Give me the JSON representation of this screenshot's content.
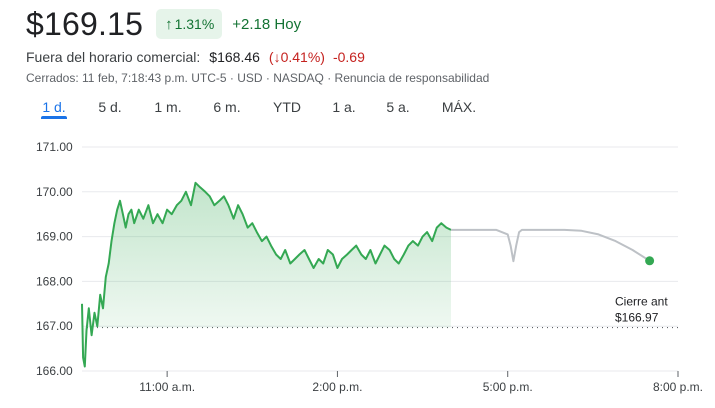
{
  "quote": {
    "price": "$169.15",
    "change_pct": "1.31%",
    "change_abs": "+2.18 Hoy",
    "up_arrow": "↑"
  },
  "after_hours": {
    "label": "Fuera del horario comercial:",
    "price": "$168.46",
    "pct_text": "0.41%",
    "down_arrow": "↓",
    "abs": "-0.69"
  },
  "meta": "Cerrados: 11 feb, 7:18:43 p.m. UTC-5 · USD · NASDAQ · Renuncia de responsabilidad",
  "tabs": [
    "1 d.",
    "5 d.",
    "1 m.",
    "6 m.",
    "YTD",
    "1 a.",
    "5 a.",
    "MÁX."
  ],
  "active_tab": "1 d.",
  "colors": {
    "up": "#137333",
    "down": "#c5221f",
    "line_up": "#34a853",
    "after_hours_line": "#bdc1c6",
    "accent": "#1a73e8"
  },
  "chart_data": {
    "type": "line",
    "ylim": [
      166.0,
      171.0
    ],
    "xlim": [
      9.5,
      20.0
    ],
    "y_ticks": [
      "171.00",
      "170.00",
      "169.00",
      "168.00",
      "167.00",
      "166.00"
    ],
    "x_ticks": [
      {
        "hour": 11,
        "label": "11:00 a.m."
      },
      {
        "hour": 14,
        "label": "2:00 p.m."
      },
      {
        "hour": 17,
        "label": "5:00 p.m."
      },
      {
        "hour": 20,
        "label": "8:00 p.m."
      }
    ],
    "previous_close": 166.97,
    "previous_close_label": "Cierre ant",
    "previous_close_value_label": "$166.97",
    "series": [
      {
        "x": [
          9.5,
          9.52,
          9.55,
          9.58,
          9.62,
          9.67,
          9.72,
          9.77,
          9.82,
          9.87,
          9.92,
          9.97,
          10.02,
          10.07,
          10.12,
          10.17,
          10.22,
          10.27,
          10.32,
          10.37,
          10.42,
          10.5,
          10.58,
          10.67,
          10.75,
          10.83,
          10.92,
          11.0,
          11.08,
          11.17,
          11.25,
          11.33,
          11.42,
          11.5,
          11.58,
          11.67,
          11.75,
          11.83,
          11.92,
          12.0,
          12.08,
          12.17,
          12.25,
          12.33,
          12.42,
          12.5,
          12.58,
          12.67,
          12.75,
          12.83,
          12.92,
          13.0,
          13.08,
          13.17,
          13.25,
          13.33,
          13.42,
          13.5,
          13.58,
          13.67,
          13.75,
          13.83,
          13.92,
          14.0,
          14.08,
          14.17,
          14.25,
          14.33,
          14.42,
          14.5,
          14.58,
          14.67,
          14.75,
          14.83,
          14.92,
          15.0,
          15.08,
          15.17,
          15.25,
          15.33,
          15.42,
          15.5,
          15.58,
          15.67,
          15.75,
          15.83,
          15.92,
          16.0
        ],
        "y": [
          167.5,
          166.3,
          166.1,
          166.9,
          167.4,
          166.8,
          167.3,
          167.0,
          167.7,
          167.4,
          168.1,
          168.4,
          168.9,
          169.3,
          169.6,
          169.8,
          169.5,
          169.2,
          169.5,
          169.6,
          169.3,
          169.6,
          169.4,
          169.7,
          169.3,
          169.5,
          169.3,
          169.6,
          169.5,
          169.7,
          169.8,
          170.0,
          169.7,
          170.2,
          170.1,
          170.0,
          169.9,
          169.7,
          169.8,
          169.9,
          169.7,
          169.4,
          169.7,
          169.5,
          169.2,
          169.3,
          169.1,
          168.9,
          169.0,
          168.8,
          168.6,
          168.5,
          168.7,
          168.4,
          168.5,
          168.6,
          168.7,
          168.5,
          168.3,
          168.5,
          168.4,
          168.7,
          168.6,
          168.3,
          168.5,
          168.6,
          168.7,
          168.8,
          168.6,
          168.5,
          168.7,
          168.4,
          168.6,
          168.8,
          168.7,
          168.5,
          168.4,
          168.6,
          168.8,
          168.9,
          168.8,
          169.0,
          169.1,
          168.9,
          169.2,
          169.3,
          169.2,
          169.15
        ]
      },
      {
        "x": [
          16.0,
          16.2,
          16.5,
          16.8,
          17.0,
          17.05,
          17.1,
          17.15,
          17.2,
          17.25,
          17.3,
          17.6,
          18.0,
          18.3,
          18.6,
          18.9,
          19.2,
          19.5
        ],
        "y": [
          169.15,
          169.15,
          169.15,
          169.15,
          169.05,
          168.8,
          168.45,
          168.8,
          169.1,
          169.15,
          169.15,
          169.15,
          169.15,
          169.13,
          169.05,
          168.9,
          168.7,
          168.46
        ]
      }
    ]
  }
}
